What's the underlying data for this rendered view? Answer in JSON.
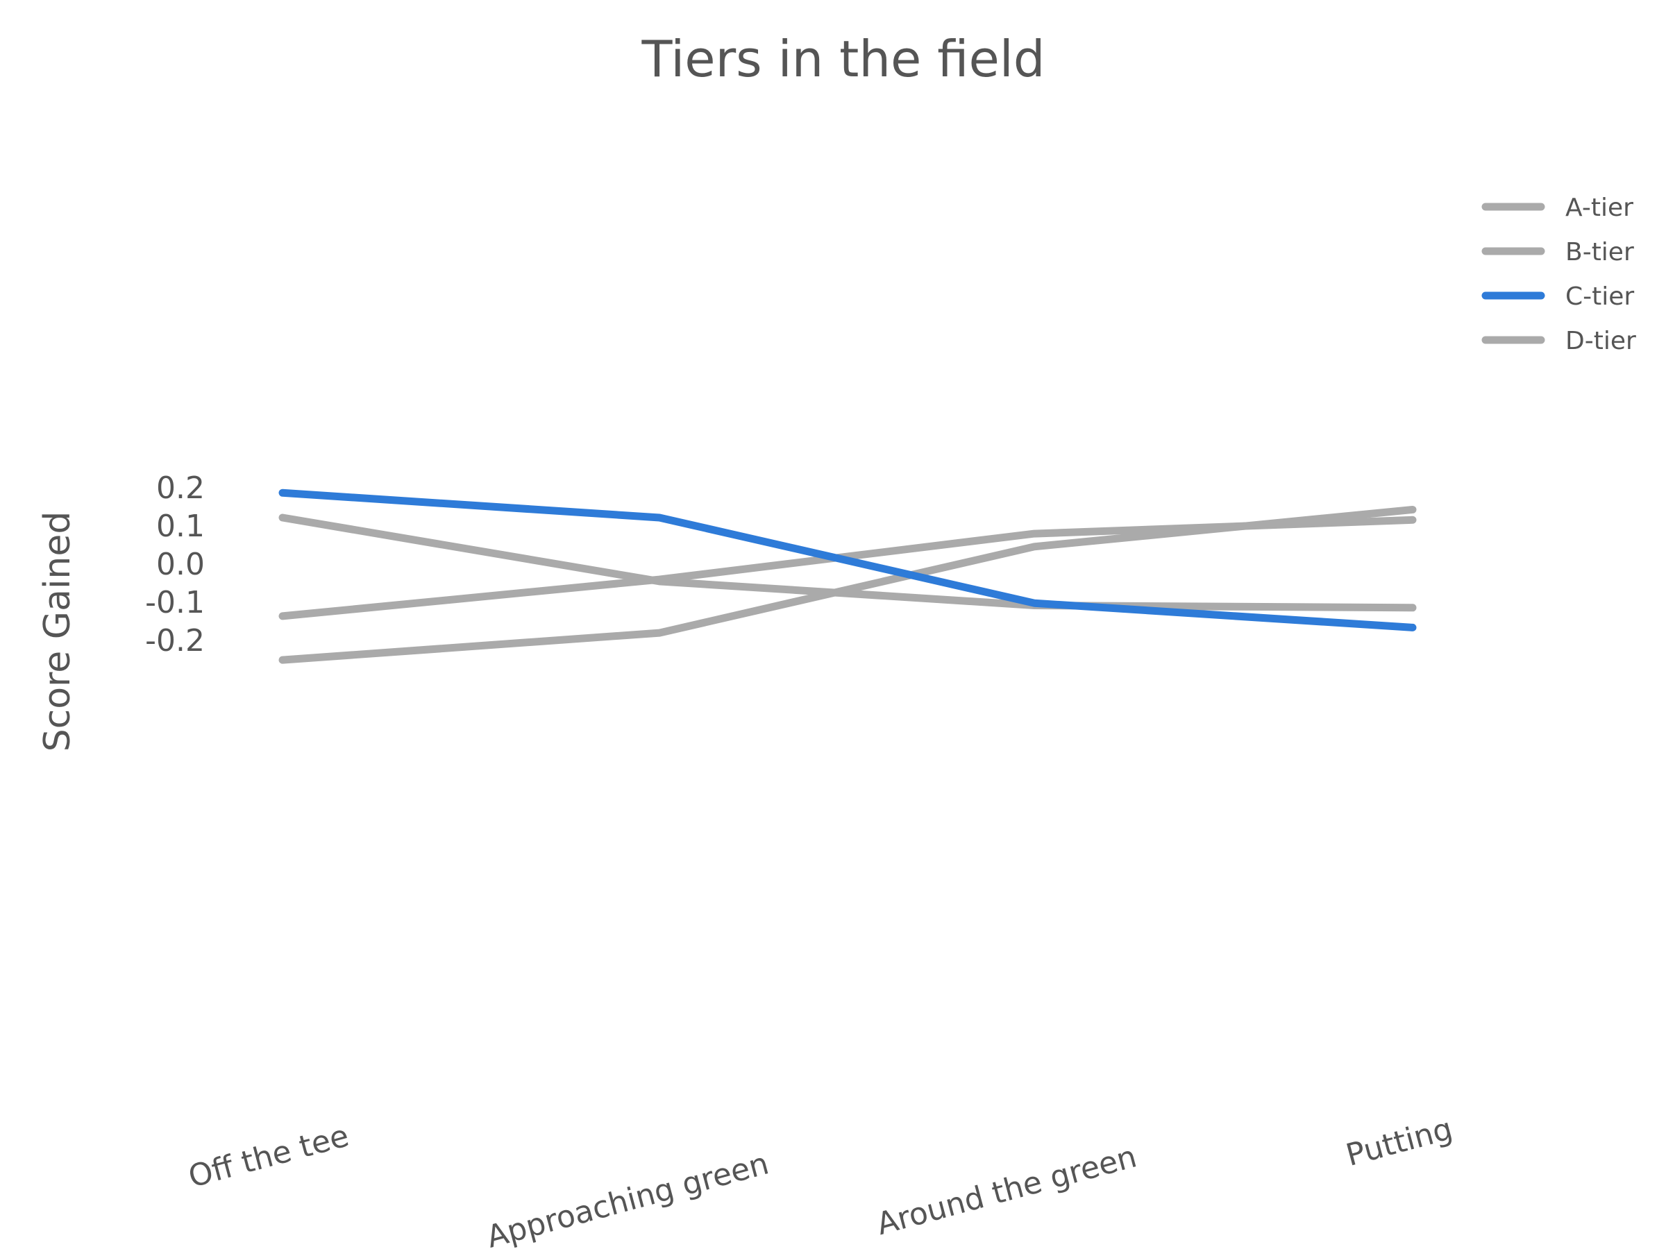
{
  "chart_data": {
    "type": "line",
    "title": "Tiers in the field",
    "xlabel": "",
    "ylabel": "Score Gained",
    "categories": [
      "Off the tee",
      "Approaching green",
      "Around the green",
      "Putting"
    ],
    "yticks": [
      "0.2",
      "0.1",
      "0.0",
      "-0.1",
      "-0.2"
    ],
    "ytick_values": [
      0.2,
      0.1,
      0.0,
      -0.1,
      -0.2
    ],
    "ylim": [
      -0.29,
      0.24
    ],
    "grid": false,
    "legend_position": "top-right",
    "series": [
      {
        "name": "A-tier",
        "color": "#aaaaaa",
        "values": [
          0.12,
          -0.047,
          -0.11,
          -0.116
        ]
      },
      {
        "name": "B-tier",
        "color": "#aaaaaa",
        "values": [
          -0.138,
          -0.042,
          0.078,
          0.114
        ]
      },
      {
        "name": "C-tier",
        "color": "#2e7bd8",
        "values": [
          0.185,
          0.12,
          -0.104,
          -0.168
        ]
      },
      {
        "name": "D-tier",
        "color": "#aaaaaa",
        "values": [
          -0.253,
          -0.182,
          0.044,
          0.141
        ]
      }
    ]
  }
}
